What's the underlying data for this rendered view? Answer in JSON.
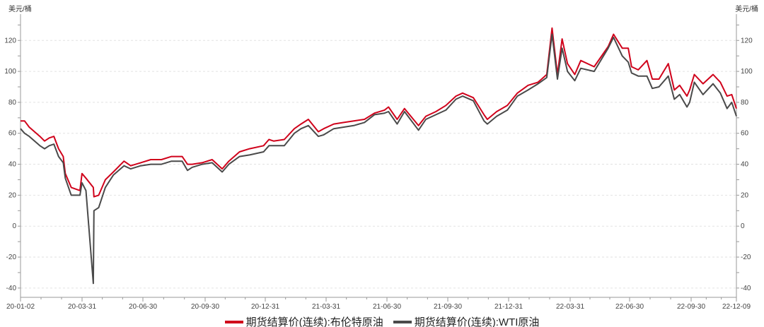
{
  "chart_data": {
    "type": "line",
    "title": "",
    "ylabel_left": "美元/桶",
    "ylabel_right": "美元/桶",
    "ylim": [
      -46,
      137
    ],
    "yticks": [
      -40,
      -20,
      0,
      20,
      40,
      60,
      80,
      100,
      120
    ],
    "xticks": [
      "20-01-02",
      "20-03-31",
      "20-06-30",
      "20-09-30",
      "20-12-31",
      "21-03-31",
      "21-06-30",
      "21-09-30",
      "21-12-31",
      "22-03-31",
      "22-06-30",
      "22-09-30",
      "22-12-09"
    ],
    "grid": true,
    "legend_position": "bottom",
    "x": [
      "2020-01-02",
      "2020-01-08",
      "2020-01-15",
      "2020-01-31",
      "2020-02-07",
      "2020-02-14",
      "2020-02-21",
      "2020-02-28",
      "2020-03-06",
      "2020-03-09",
      "2020-03-18",
      "2020-03-31",
      "2020-04-03",
      "2020-04-09",
      "2020-04-20",
      "2020-04-21",
      "2020-04-28",
      "2020-05-08",
      "2020-05-20",
      "2020-06-05",
      "2020-06-15",
      "2020-06-30",
      "2020-07-15",
      "2020-07-31",
      "2020-08-15",
      "2020-08-31",
      "2020-09-08",
      "2020-09-15",
      "2020-09-30",
      "2020-10-15",
      "2020-10-30",
      "2020-11-09",
      "2020-11-25",
      "2020-12-10",
      "2020-12-31",
      "2021-01-08",
      "2021-01-15",
      "2021-01-31",
      "2021-02-15",
      "2021-02-25",
      "2021-03-08",
      "2021-03-23",
      "2021-03-31",
      "2021-04-15",
      "2021-04-30",
      "2021-05-15",
      "2021-05-31",
      "2021-06-15",
      "2021-06-30",
      "2021-07-06",
      "2021-07-19",
      "2021-07-30",
      "2021-08-20",
      "2021-08-31",
      "2021-09-15",
      "2021-09-30",
      "2021-10-15",
      "2021-10-25",
      "2021-11-10",
      "2021-11-26",
      "2021-12-01",
      "2021-12-15",
      "2021-12-31",
      "2022-01-15",
      "2022-01-31",
      "2022-02-15",
      "2022-02-28",
      "2022-03-08",
      "2022-03-16",
      "2022-03-23",
      "2022-03-31",
      "2022-04-11",
      "2022-04-20",
      "2022-05-10",
      "2022-05-31",
      "2022-06-08",
      "2022-06-21",
      "2022-06-30",
      "2022-07-05",
      "2022-07-15",
      "2022-07-28",
      "2022-08-05",
      "2022-08-15",
      "2022-08-29",
      "2022-09-07",
      "2022-09-15",
      "2022-09-26",
      "2022-09-30",
      "2022-10-07",
      "2022-10-20",
      "2022-11-04",
      "2022-11-15",
      "2022-11-25",
      "2022-12-02",
      "2022-12-09"
    ],
    "series": [
      {
        "name": "期货结算价(连续):布伦特原油",
        "color": "#d0021b",
        "values": [
          68,
          68,
          64,
          58,
          55,
          57,
          58,
          50,
          45,
          34,
          25,
          23,
          34,
          31,
          25,
          19,
          20,
          30,
          35,
          42,
          39,
          41,
          43,
          43,
          45,
          45,
          40,
          40,
          41,
          43,
          37,
          42,
          48,
          50,
          52,
          56,
          55,
          56,
          63,
          66,
          69,
          61,
          63,
          66,
          67,
          68,
          69,
          73,
          75,
          77,
          69,
          76,
          65,
          71,
          74,
          78,
          84,
          86,
          83,
          72,
          69,
          74,
          78,
          86,
          91,
          93,
          98,
          128,
          98,
          121,
          105,
          98,
          107,
          103,
          116,
          124,
          115,
          115,
          103,
          101,
          107,
          95,
          95,
          105,
          88,
          91,
          84,
          88,
          98,
          92,
          98,
          93,
          84,
          85,
          76
        ]
      },
      {
        "name": "期货结算价(连续):WTI原油",
        "color": "#4a4a4a",
        "values": [
          63,
          60,
          58,
          52,
          50,
          52,
          53,
          45,
          41,
          31,
          20,
          20,
          28,
          23,
          -37,
          10,
          12,
          25,
          33,
          39,
          37,
          39,
          40,
          40,
          42,
          42,
          36,
          38,
          40,
          41,
          35,
          40,
          45,
          46,
          48,
          52,
          52,
          52,
          60,
          63,
          65,
          58,
          59,
          63,
          64,
          65,
          67,
          72,
          73,
          74,
          66,
          74,
          62,
          69,
          72,
          75,
          82,
          84,
          81,
          68,
          66,
          71,
          75,
          84,
          88,
          92,
          96,
          124,
          95,
          115,
          100,
          94,
          102,
          100,
          115,
          122,
          110,
          106,
          99,
          97,
          97,
          89,
          90,
          97,
          82,
          85,
          77,
          80,
          93,
          85,
          92,
          86,
          76,
          80,
          71
        ]
      }
    ]
  }
}
